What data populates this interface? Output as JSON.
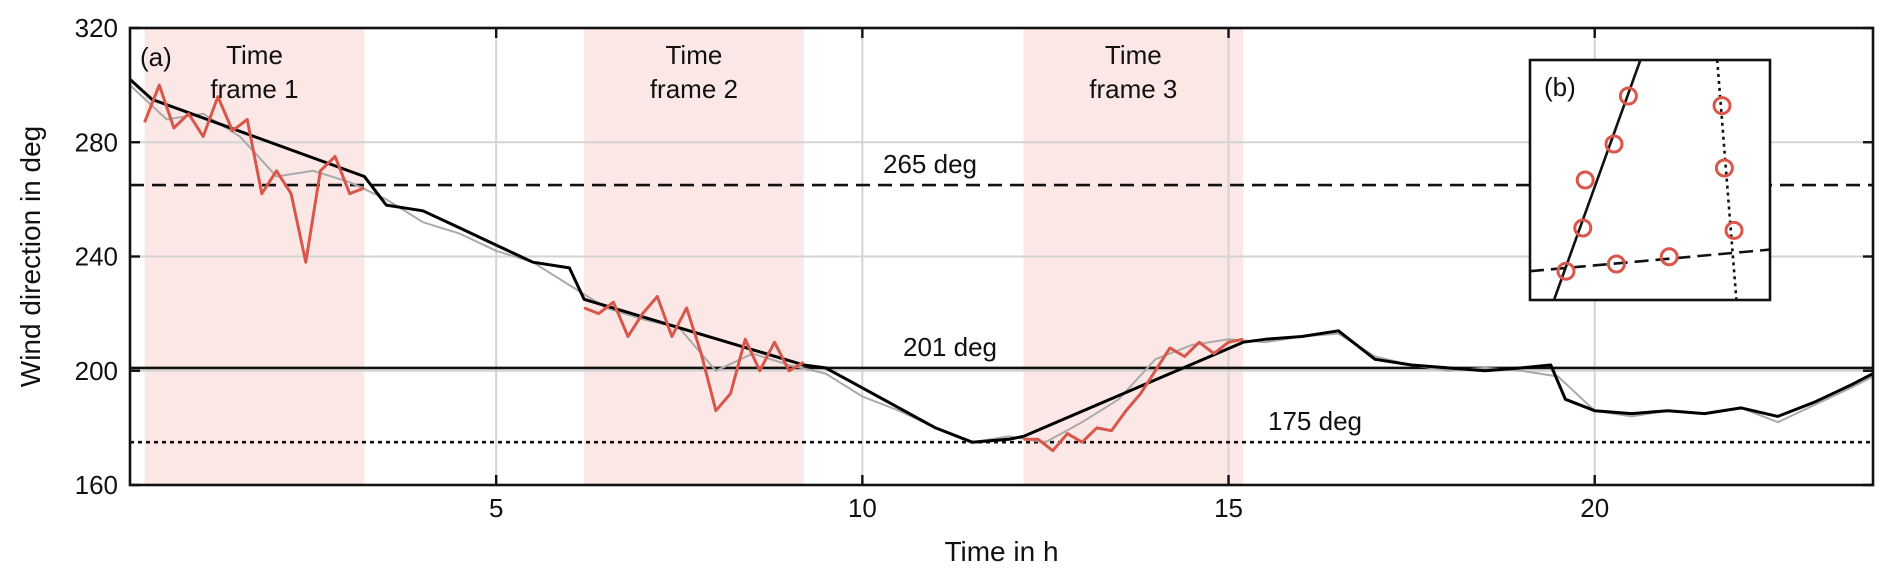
{
  "chart_data": [
    {
      "type": "line",
      "panel_label": "(a)",
      "xlabel": "Time in h",
      "ylabel": "Wind direction in deg",
      "xlim": [
        0,
        23.8
      ],
      "ylim": [
        160,
        320
      ],
      "xticks": [
        5,
        10,
        15,
        20
      ],
      "yticks": [
        160,
        200,
        240,
        280,
        320
      ],
      "grid": true,
      "shaded_regions": [
        {
          "label_line1": "Time",
          "label_line2": "frame 1",
          "x": [
            0.2,
            3.2
          ],
          "color": "#fbe8e6"
        },
        {
          "label_line1": "Time",
          "label_line2": "frame 2",
          "x": [
            6.2,
            9.2
          ],
          "color": "#fbe8e6"
        },
        {
          "label_line1": "Time",
          "label_line2": "frame 3",
          "x": [
            12.2,
            15.2
          ],
          "color": "#fbe8e6"
        }
      ],
      "reference_lines": [
        {
          "label": "265 deg",
          "y": 265,
          "style": "dashed"
        },
        {
          "label": "201 deg",
          "y": 201,
          "style": "solid"
        },
        {
          "label": "175 deg",
          "y": 175,
          "style": "dotted"
        }
      ],
      "series": [
        {
          "style": "raw",
          "color": "#aaaaaa",
          "x": [
            0,
            0.5,
            1,
            1.5,
            2,
            2.5,
            3,
            3.5,
            4,
            4.5,
            5,
            5.5,
            6,
            6.5,
            7,
            7.5,
            8,
            8.5,
            9,
            9.5,
            10,
            10.5,
            11,
            11.5,
            12,
            12.5,
            13,
            13.5,
            14,
            14.5,
            15,
            15.5,
            16,
            16.5,
            17,
            17.5,
            18,
            18.5,
            19,
            19.5,
            20,
            20.5,
            21,
            21.5,
            22,
            22.5,
            23,
            23.5,
            23.8
          ],
          "y": [
            300,
            288,
            290,
            282,
            268,
            270,
            266,
            260,
            252,
            248,
            242,
            238,
            230,
            222,
            218,
            215,
            200,
            206,
            202,
            199,
            191,
            186,
            180,
            175,
            177,
            175,
            182,
            190,
            204,
            209,
            211,
            210,
            212,
            213,
            205,
            202,
            200,
            201,
            200,
            198,
            186,
            184,
            186,
            185,
            187,
            182,
            188,
            194,
            198
          ]
        },
        {
          "style": "filtered",
          "color": "#000000",
          "x": [
            0,
            0.3,
            3.2,
            3.5,
            4,
            4.5,
            5,
            5.5,
            6,
            6.2,
            9.2,
            9.5,
            10,
            10.5,
            11,
            11.5,
            12,
            12.2,
            15.2,
            15.5,
            16,
            16.5,
            17,
            17.5,
            18,
            18.5,
            19,
            19.4,
            19.6,
            20,
            20.5,
            21,
            21.5,
            22,
            22.5,
            23,
            23.5,
            23.8
          ],
          "y": [
            302,
            295,
            268,
            258,
            256,
            250,
            244,
            238,
            236,
            225,
            202,
            201,
            194,
            187,
            180,
            175,
            176,
            177,
            210,
            211,
            212,
            214,
            204,
            202,
            201,
            200,
            201,
            202,
            190,
            186,
            185,
            186,
            185,
            187,
            184,
            189,
            195,
            199
          ]
        },
        {
          "style": "frame-fit",
          "color": "#d9574a",
          "segments": [
            {
              "x": [
                0.2,
                0.4,
                0.6,
                0.8,
                1.0,
                1.2,
                1.4,
                1.6,
                1.8,
                2.0,
                2.2,
                2.4,
                2.6,
                2.8,
                3.0,
                3.2
              ],
              "y": [
                287,
                300,
                285,
                290,
                282,
                296,
                284,
                288,
                262,
                270,
                262,
                238,
                270,
                275,
                262,
                264
              ]
            },
            {
              "x": [
                6.2,
                6.4,
                6.6,
                6.8,
                7.0,
                7.2,
                7.4,
                7.6,
                7.8,
                8.0,
                8.2,
                8.4,
                8.6,
                8.8,
                9.0,
                9.2
              ],
              "y": [
                222,
                220,
                224,
                212,
                220,
                226,
                212,
                222,
                206,
                186,
                192,
                211,
                200,
                210,
                200,
                203
              ]
            },
            {
              "x": [
                12.2,
                12.4,
                12.6,
                12.8,
                13.0,
                13.2,
                13.4,
                13.6,
                13.8,
                14.0,
                14.2,
                14.4,
                14.6,
                14.8,
                15.0,
                15.2
              ],
              "y": [
                176,
                176,
                172,
                178,
                175,
                180,
                179,
                186,
                192,
                200,
                208,
                205,
                210,
                206,
                210,
                211
              ]
            }
          ]
        }
      ]
    },
    {
      "type": "scatter",
      "panel_label": "(b)",
      "xlim": [
        0,
        10
      ],
      "ylim": [
        0,
        10
      ],
      "points": [
        {
          "x": 1.5,
          "y": 1.2
        },
        {
          "x": 3.6,
          "y": 1.5
        },
        {
          "x": 5.8,
          "y": 1.8
        },
        {
          "x": 2.2,
          "y": 3.0
        },
        {
          "x": 2.3,
          "y": 5.0
        },
        {
          "x": 3.5,
          "y": 6.5
        },
        {
          "x": 4.1,
          "y": 8.5
        },
        {
          "x": 8.0,
          "y": 8.1
        },
        {
          "x": 8.1,
          "y": 5.5
        },
        {
          "x": 8.5,
          "y": 2.9
        }
      ],
      "lines": [
        {
          "style": "solid",
          "from": [
            1.0,
            0.0
          ],
          "to": [
            4.6,
            10.0
          ]
        },
        {
          "style": "dashed",
          "from": [
            0.0,
            1.2
          ],
          "to": [
            10.0,
            2.1
          ]
        },
        {
          "style": "dotted",
          "from": [
            7.8,
            10.0
          ],
          "to": [
            8.6,
            0.0
          ]
        }
      ]
    }
  ]
}
